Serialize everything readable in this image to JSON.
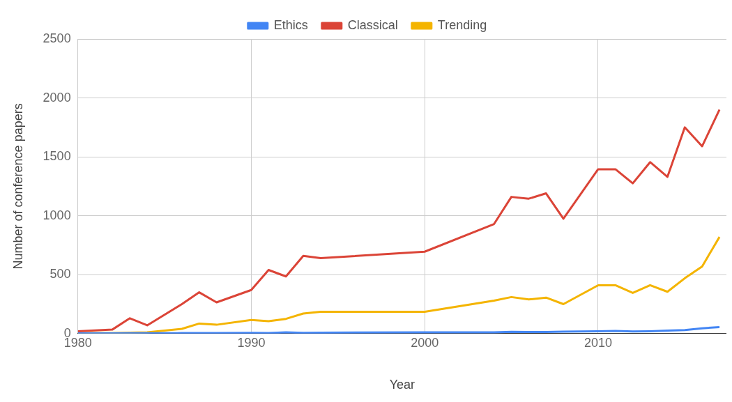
{
  "chart_data": {
    "type": "line",
    "xlabel": "Year",
    "ylabel": "Number of conference papers",
    "xlim": [
      1980,
      2017.4
    ],
    "xticks": [
      1980,
      1990,
      2000,
      2010
    ],
    "ylim": [
      0,
      2500
    ],
    "yticks": [
      0,
      500,
      1000,
      1500,
      2000,
      2500
    ],
    "grid": true,
    "legend": "top",
    "marker": "none",
    "line_style": "solid",
    "x": [
      1980,
      1982,
      1983,
      1984,
      1986,
      1987,
      1988,
      1990,
      1991,
      1992,
      1993,
      1994,
      2000,
      2004,
      2005,
      2006,
      2007,
      2008,
      2010,
      2011,
      2012,
      2013,
      2014,
      2015,
      2016,
      2017
    ],
    "series": [
      {
        "name": "Ethics",
        "color": "#4285f4",
        "values": [
          2,
          2,
          3,
          3,
          4,
          5,
          4,
          6,
          5,
          10,
          6,
          8,
          10,
          10,
          15,
          14,
          13,
          16,
          20,
          22,
          18,
          20,
          25,
          30,
          45,
          55
        ]
      },
      {
        "name": "Classical",
        "color": "#db4437",
        "values": [
          20,
          35,
          130,
          70,
          250,
          350,
          265,
          370,
          540,
          485,
          660,
          640,
          695,
          930,
          1160,
          1145,
          1190,
          975,
          1395,
          1395,
          1275,
          1455,
          1330,
          1750,
          1590,
          1900
        ]
      },
      {
        "name": "Trending",
        "color": "#f4b400",
        "values": [
          5,
          5,
          8,
          10,
          40,
          85,
          75,
          115,
          105,
          125,
          170,
          185,
          185,
          280,
          310,
          290,
          305,
          250,
          410,
          410,
          345,
          410,
          355,
          470,
          570,
          820
        ]
      }
    ]
  }
}
